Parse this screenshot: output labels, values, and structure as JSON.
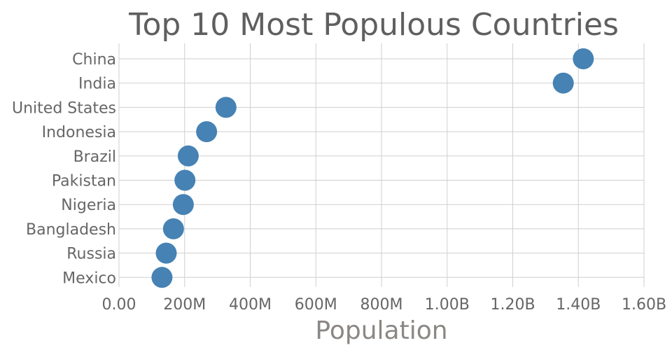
{
  "chart_data": {
    "type": "scatter",
    "title": "Top 10 Most Populous Countries",
    "xlabel": "Population",
    "ylabel": "",
    "xlim": [
      0,
      1600000000
    ],
    "x_ticks": [
      0,
      200000000,
      400000000,
      600000000,
      800000000,
      1000000000,
      1200000000,
      1400000000,
      1600000000
    ],
    "x_tick_labels": [
      "0.00",
      "200M",
      "400M",
      "600M",
      "800M",
      "1.00B",
      "1.20B",
      "1.40B",
      "1.60B"
    ],
    "grid": true,
    "marker_color": "#4682b4",
    "categories": [
      "China",
      "India",
      "United States",
      "Indonesia",
      "Brazil",
      "Pakistan",
      "Nigeria",
      "Bangladesh",
      "Russia",
      "Mexico"
    ],
    "values": [
      1415000000,
      1354000000,
      326000000,
      267000000,
      211000000,
      201000000,
      196000000,
      166000000,
      144000000,
      131000000
    ]
  }
}
